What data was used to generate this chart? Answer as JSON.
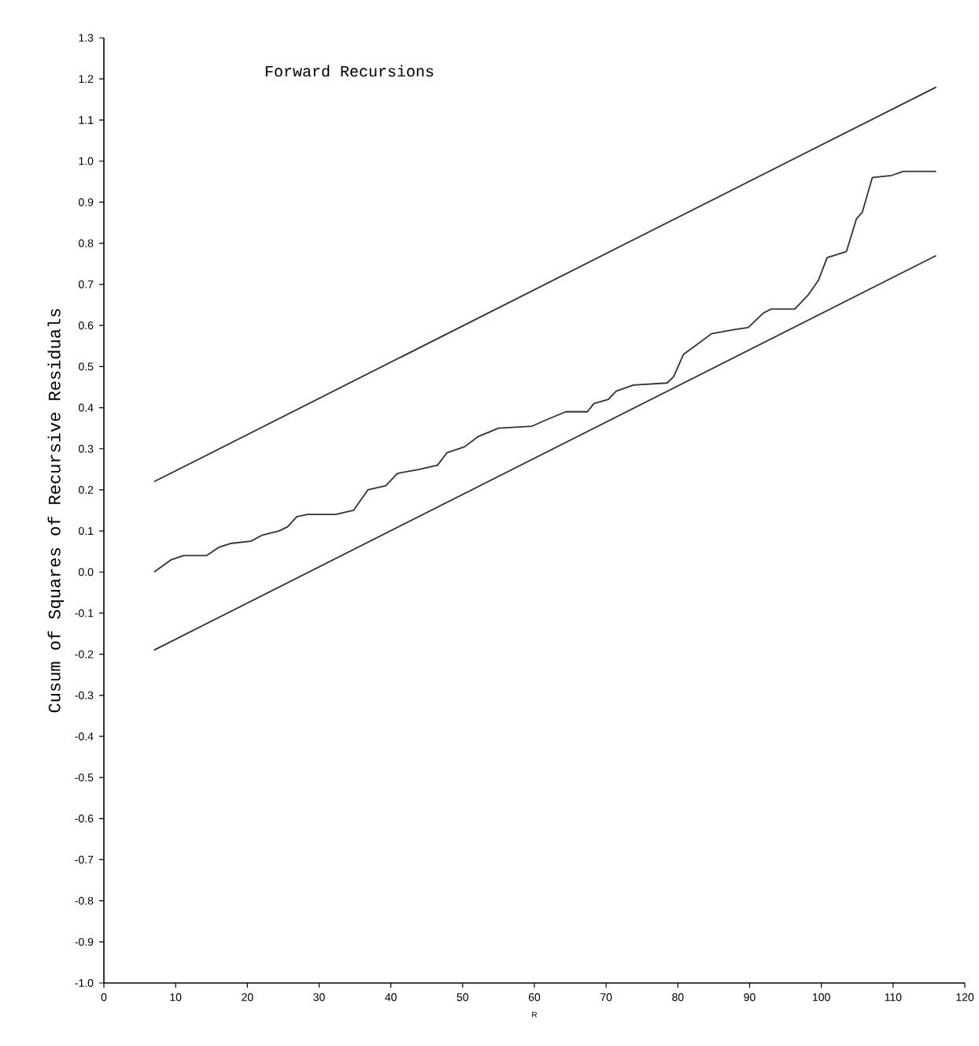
{
  "chart_data": {
    "type": "line",
    "title": "Forward Recursions",
    "xlabel": "R",
    "ylabel": "Cusum of Squares of Recursive Residuals",
    "xlim": [
      0,
      120
    ],
    "ylim": [
      -1.0,
      1.3
    ],
    "xticks": [
      0,
      10,
      20,
      30,
      40,
      50,
      60,
      70,
      80,
      90,
      100,
      110,
      120
    ],
    "yticks": [
      {
        "value": -1.0,
        "label": "-1.0"
      },
      {
        "value": -0.9,
        "label": "-0.9"
      },
      {
        "value": -0.8,
        "label": "-0.8"
      },
      {
        "value": -0.7,
        "label": "-0.7"
      },
      {
        "value": -0.6,
        "label": "-0.6"
      },
      {
        "value": -0.5,
        "label": "-0.5"
      },
      {
        "value": -0.4,
        "label": "-0.4"
      },
      {
        "value": -0.3,
        "label": "-0.3"
      },
      {
        "value": -0.2,
        "label": "-0.2"
      },
      {
        "value": -0.1,
        "label": "-0.1"
      },
      {
        "value": 0.0,
        "label": "0.0"
      },
      {
        "value": 0.1,
        "label": "0.1"
      },
      {
        "value": 0.2,
        "label": "0.2"
      },
      {
        "value": 0.3,
        "label": "0.3"
      },
      {
        "value": 0.4,
        "label": "0.4"
      },
      {
        "value": 0.5,
        "label": "0.5"
      },
      {
        "value": 0.6,
        "label": "0.6"
      },
      {
        "value": 0.7,
        "label": "0.7"
      },
      {
        "value": 0.8,
        "label": "0.8"
      },
      {
        "value": 0.9,
        "label": "0.9"
      },
      {
        "value": 1.0,
        "label": "1.0"
      },
      {
        "value": 1.1,
        "label": "1.1"
      },
      {
        "value": 1.2,
        "label": "1.2"
      },
      {
        "value": 1.3,
        "label": "1.3"
      }
    ],
    "series": [
      {
        "color": "#3a2e2e",
        "x": [
          7,
          116
        ],
        "values": [
          0.22,
          1.18
        ]
      },
      {
        "color": "#3a2e2e",
        "x": [
          7,
          7.8,
          9.4,
          11.1,
          14.3,
          16.0,
          17.8,
          20.5,
          22.1,
          24.4,
          25.6,
          26.9,
          28.4,
          32.3,
          34.8,
          35.6,
          36.8,
          39.3,
          40.9,
          44.0,
          46.5,
          47.8,
          50.3,
          52.2,
          55.0,
          59.7,
          61.6,
          64.4,
          67.4,
          68.3,
          70.3,
          71.4,
          73.8,
          78.5,
          79.4,
          80.8,
          82.4,
          84.7,
          87.9,
          89.8,
          91.9,
          93.0,
          96.3,
          98.2,
          99.6,
          100.8,
          103.5,
          104.9,
          105.7,
          107.1,
          109.8,
          111.4,
          116
        ],
        "values": [
          0.0,
          0.01,
          0.03,
          0.04,
          0.04,
          0.06,
          0.07,
          0.075,
          0.09,
          0.1,
          0.11,
          0.135,
          0.14,
          0.14,
          0.15,
          0.17,
          0.2,
          0.21,
          0.24,
          0.25,
          0.26,
          0.29,
          0.305,
          0.33,
          0.35,
          0.355,
          0.37,
          0.39,
          0.39,
          0.41,
          0.42,
          0.44,
          0.455,
          0.46,
          0.475,
          0.53,
          0.55,
          0.58,
          0.59,
          0.595,
          0.63,
          0.64,
          0.64,
          0.675,
          0.71,
          0.765,
          0.78,
          0.86,
          0.875,
          0.96,
          0.965,
          0.975,
          0.975
        ]
      },
      {
        "color": "#3a2e2e",
        "x": [
          7,
          116
        ],
        "values": [
          -0.19,
          0.77
        ]
      }
    ]
  }
}
